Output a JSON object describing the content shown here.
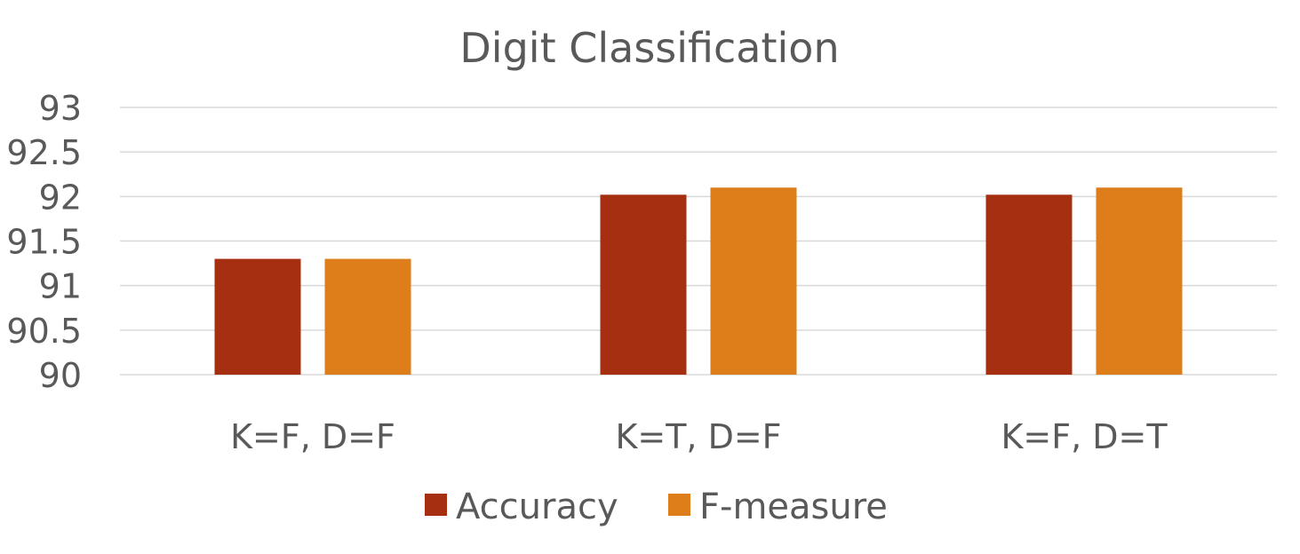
{
  "chart_data": {
    "type": "bar",
    "title": "Digit Classification",
    "xlabel": "",
    "ylabel": "",
    "categories": [
      "K=F, D=F",
      "K=T, D=F",
      "K=F, D=T"
    ],
    "series": [
      {
        "name": "Accuracy",
        "color": "#A52F10",
        "values": [
          91.3,
          92.02,
          92.02
        ]
      },
      {
        "name": "F-measure",
        "color": "#DD7E1B",
        "values": [
          91.3,
          92.1,
          92.1
        ]
      }
    ],
    "ylim": [
      90,
      93
    ],
    "yticks": [
      "90",
      "90.5",
      "91",
      "91.5",
      "92",
      "92.5",
      "93"
    ],
    "grid": true,
    "legend_position": "bottom"
  }
}
